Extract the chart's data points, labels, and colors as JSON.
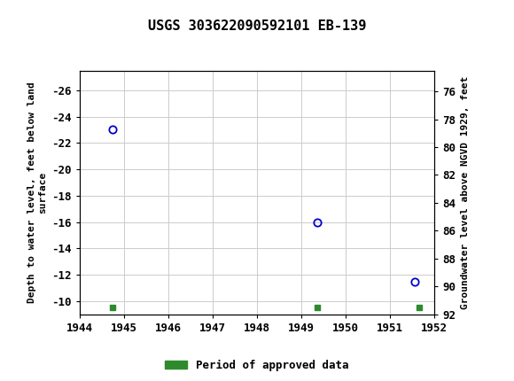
{
  "title": "USGS 303622090592101 EB-139",
  "header_color": "#1b6b3a",
  "data_points": [
    {
      "year": 1944.75,
      "depth": -23.0
    },
    {
      "year": 1949.35,
      "depth": -16.0
    },
    {
      "year": 1951.55,
      "depth": -11.5
    }
  ],
  "approved_markers": [
    {
      "year": 1944.75,
      "depth": -9.55
    },
    {
      "year": 1949.35,
      "depth": -9.55
    },
    {
      "year": 1951.65,
      "depth": -9.55
    }
  ],
  "xlim": [
    1944,
    1952
  ],
  "ylim_left_bottom": -27.5,
  "ylim_left_top": -9.0,
  "ylim_right_bottom": 74.5,
  "ylim_right_top": 92.0,
  "xticks": [
    1944,
    1945,
    1946,
    1947,
    1948,
    1949,
    1950,
    1951,
    1952
  ],
  "yticks_left": [
    -26,
    -24,
    -22,
    -20,
    -18,
    -16,
    -14,
    -12,
    -10
  ],
  "yticks_right": [
    92,
    90,
    88,
    86,
    84,
    82,
    80,
    78,
    76
  ],
  "ylabel_left": "Depth to water level, feet below land\nsurface",
  "ylabel_right": "Groundwater level above NGVD 1929, feet",
  "legend_label": "Period of approved data",
  "marker_color": "#0000cc",
  "approved_color": "#2d8a2d",
  "grid_color": "#cccccc",
  "bg_color": "#ffffff",
  "tick_fontsize": 9,
  "label_fontsize": 8,
  "title_fontsize": 11
}
